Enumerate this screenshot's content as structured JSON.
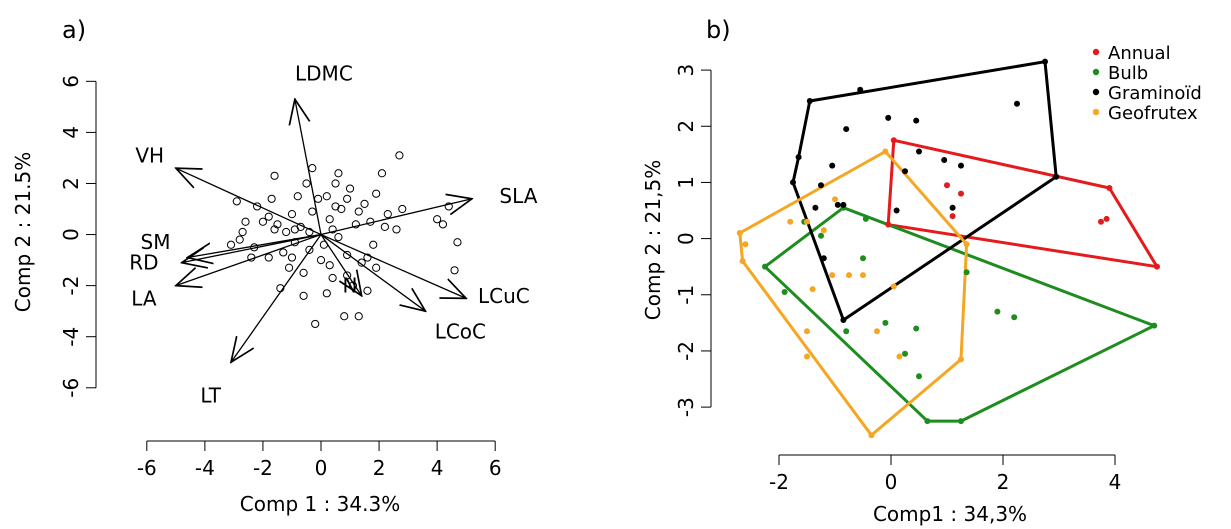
{
  "chart_data": [
    {
      "type": "scatter",
      "panel_label": "a)",
      "xlabel": "Comp 1 : 34.3%",
      "ylabel": "Comp 2 : 21.5%",
      "xlim": [
        -6.2,
        6.2
      ],
      "ylim": [
        -6.4,
        6.6
      ],
      "xticks": [
        -6,
        -4,
        -2,
        0,
        2,
        4,
        6
      ],
      "yticks": [
        -6,
        -4,
        -2,
        0,
        2,
        4,
        6
      ],
      "grid": false,
      "points": [
        [
          -2.2,
          1.1
        ],
        [
          -1.8,
          0.7
        ],
        [
          -2.6,
          0.5
        ],
        [
          -1.5,
          0.4
        ],
        [
          -1.0,
          0.8
        ],
        [
          -0.7,
          0.3
        ],
        [
          -0.3,
          0.9
        ],
        [
          0.2,
          1.5
        ],
        [
          0.5,
          1.1
        ],
        [
          0.9,
          1.4
        ],
        [
          1.3,
          0.9
        ],
        [
          1.7,
          0.5
        ],
        [
          2.2,
          0.3
        ],
        [
          2.6,
          0.2
        ],
        [
          0.4,
          0.2
        ],
        [
          0.1,
          -0.4
        ],
        [
          -0.4,
          -0.6
        ],
        [
          -0.9,
          -0.3
        ],
        [
          -1.3,
          -0.7
        ],
        [
          -1.8,
          -0.9
        ],
        [
          -2.3,
          -0.5
        ],
        [
          -2.8,
          -0.2
        ],
        [
          -1.1,
          -1.3
        ],
        [
          -0.6,
          -1.5
        ],
        [
          0.3,
          -1.2
        ],
        [
          0.9,
          -1.6
        ],
        [
          1.4,
          -1.1
        ],
        [
          1.9,
          -1.3
        ],
        [
          1.1,
          -2.0
        ],
        [
          0.2,
          -2.3
        ],
        [
          -0.2,
          -3.5
        ],
        [
          0.8,
          -3.2
        ],
        [
          1.3,
          -3.2
        ],
        [
          1.6,
          -2.2
        ],
        [
          2.8,
          1.0
        ],
        [
          2.1,
          2.4
        ],
        [
          2.7,
          3.1
        ],
        [
          -1.6,
          2.3
        ],
        [
          -0.5,
          2.0
        ],
        [
          0.5,
          2.0
        ],
        [
          1.0,
          1.8
        ],
        [
          -2.7,
          0.1
        ],
        [
          -0.8,
          1.5
        ],
        [
          1.8,
          -0.4
        ],
        [
          -3.1,
          -0.4
        ],
        [
          -1.2,
          0.1
        ],
        [
          0.9,
          -0.8
        ],
        [
          -0.1,
          1.4
        ],
        [
          -1.6,
          0.2
        ],
        [
          0.6,
          -0.1
        ],
        [
          4.4,
          1.1
        ],
        [
          4.2,
          0.4
        ],
        [
          4.7,
          -0.3
        ],
        [
          4.6,
          -1.4
        ],
        [
          4.0,
          0.6
        ],
        [
          -0.3,
          2.6
        ],
        [
          0.7,
          1.0
        ],
        [
          -2.0,
          0.5
        ],
        [
          -1.4,
          -2.1
        ],
        [
          1.5,
          1.2
        ],
        [
          0.3,
          0.6
        ],
        [
          -0.9,
          0.2
        ],
        [
          -2.4,
          -0.9
        ],
        [
          2.3,
          0.8
        ],
        [
          0.0,
          -1.0
        ],
        [
          -1.7,
          1.4
        ],
        [
          1.2,
          0.4
        ],
        [
          -0.6,
          -2.4
        ],
        [
          0.4,
          -1.7
        ],
        [
          -1.0,
          -0.9
        ],
        [
          1.9,
          1.6
        ],
        [
          -2.9,
          1.3
        ],
        [
          -0.4,
          0.1
        ],
        [
          0.6,
          2.4
        ],
        [
          1.6,
          -0.9
        ]
      ],
      "arrows": [
        {
          "label": "LDMC",
          "x": -0.9,
          "y": 5.3
        },
        {
          "label": "VH",
          "x": -5.0,
          "y": 2.6
        },
        {
          "label": "SLA",
          "x": 5.2,
          "y": 1.4
        },
        {
          "label": "SM",
          "x": -4.6,
          "y": -0.9
        },
        {
          "label": "RD",
          "x": -4.8,
          "y": -1.1
        },
        {
          "label": "LA",
          "x": -5.0,
          "y": -2.0
        },
        {
          "label": "N",
          "x": 1.4,
          "y": -2.4
        },
        {
          "label": "LCuC",
          "x": 5.0,
          "y": -2.5
        },
        {
          "label": "LCoC",
          "x": 3.6,
          "y": -3.0
        },
        {
          "label": "LT",
          "x": -3.1,
          "y": -5.0
        }
      ],
      "arrow_labels_pos": [
        {
          "label": "LDMC",
          "x": 0.1,
          "y": 6.3
        },
        {
          "label": "VH",
          "x": -5.9,
          "y": 3.1
        },
        {
          "label": "SLA",
          "x": 6.8,
          "y": 1.5
        },
        {
          "label": "SM",
          "x": -5.7,
          "y": -0.3
        },
        {
          "label": "RD",
          "x": -6.1,
          "y": -1.1
        },
        {
          "label": "LA",
          "x": -6.1,
          "y": -2.5
        },
        {
          "label": "N",
          "x": 1.0,
          "y": -2.0
        },
        {
          "label": "LCuC",
          "x": 6.3,
          "y": -2.4
        },
        {
          "label": "LCoC",
          "x": 4.8,
          "y": -3.8
        },
        {
          "label": "LT",
          "x": -3.8,
          "y": -6.3
        }
      ]
    },
    {
      "type": "scatter",
      "panel_label": "b)",
      "xlabel": "Comp1 : 34,3%",
      "ylabel": "Comp 2 : 21,5%",
      "xlim": [
        -2.75,
        5.0
      ],
      "ylim": [
        -3.55,
        3.5
      ],
      "xticks": [
        -2,
        0,
        2,
        4
      ],
      "yticks": [
        -3,
        -2,
        -1,
        0,
        1,
        2,
        3
      ],
      "grid": false,
      "legend_position": "top-right",
      "legend": [
        {
          "label": "Annual",
          "color": "#e41a1c"
        },
        {
          "label": "Bulb",
          "color": "#1e8c1e"
        },
        {
          "label": "Graminoïd",
          "color": "#000000"
        },
        {
          "label": "Geofrutex",
          "color": "#f5a623"
        }
      ],
      "series": [
        {
          "name": "Annual",
          "color": "#e41a1c",
          "hull": [
            [
              0.05,
              1.75
            ],
            [
              3.9,
              0.9
            ],
            [
              4.75,
              -0.5
            ],
            [
              -0.05,
              0.25
            ]
          ],
          "points": [
            [
              0.05,
              1.75
            ],
            [
              3.9,
              0.9
            ],
            [
              4.75,
              -0.5
            ],
            [
              -0.05,
              0.25
            ],
            [
              1.0,
              0.95
            ],
            [
              1.1,
              0.4
            ],
            [
              3.75,
              0.3
            ],
            [
              3.85,
              0.35
            ],
            [
              1.25,
              0.8
            ]
          ]
        },
        {
          "name": "Bulb",
          "color": "#1e8c1e",
          "hull": [
            [
              -0.85,
              0.55
            ],
            [
              4.7,
              -1.55
            ],
            [
              1.25,
              -3.25
            ],
            [
              0.65,
              -3.25
            ],
            [
              -2.25,
              -0.5
            ]
          ],
          "points": [
            [
              -0.85,
              0.55
            ],
            [
              4.7,
              -1.55
            ],
            [
              1.25,
              -3.25
            ],
            [
              0.65,
              -3.25
            ],
            [
              -2.25,
              -0.5
            ],
            [
              -1.9,
              -0.95
            ],
            [
              -1.55,
              0.3
            ],
            [
              -0.45,
              0.35
            ],
            [
              -0.8,
              -1.65
            ],
            [
              -0.1,
              -1.5
            ],
            [
              0.45,
              -1.6
            ],
            [
              0.25,
              -2.05
            ],
            [
              0.5,
              -2.45
            ],
            [
              1.35,
              -0.6
            ],
            [
              1.9,
              -1.3
            ],
            [
              2.2,
              -1.4
            ],
            [
              -1.25,
              0.05
            ],
            [
              -0.5,
              -0.35
            ]
          ]
        },
        {
          "name": "Graminoïd",
          "color": "#000000",
          "hull": [
            [
              -1.45,
              2.45
            ],
            [
              2.75,
              3.15
            ],
            [
              2.95,
              1.1
            ],
            [
              -0.85,
              -1.45
            ],
            [
              -1.75,
              1.0
            ],
            [
              -1.65,
              1.45
            ]
          ],
          "points": [
            [
              -1.45,
              2.45
            ],
            [
              2.75,
              3.15
            ],
            [
              2.95,
              1.1
            ],
            [
              -0.85,
              -1.45
            ],
            [
              -1.75,
              1.0
            ],
            [
              -1.65,
              1.45
            ],
            [
              -0.55,
              2.65
            ],
            [
              -0.05,
              2.15
            ],
            [
              0.45,
              2.1
            ],
            [
              -0.8,
              1.95
            ],
            [
              0.5,
              1.55
            ],
            [
              -1.05,
              1.3
            ],
            [
              0.95,
              1.4
            ],
            [
              1.25,
              1.3
            ],
            [
              0.25,
              1.2
            ],
            [
              2.25,
              2.4
            ],
            [
              -1.35,
              0.55
            ],
            [
              -0.95,
              0.6
            ],
            [
              -1.25,
              0.95
            ],
            [
              0.1,
              0.5
            ],
            [
              1.1,
              0.55
            ],
            [
              -1.2,
              -0.35
            ],
            [
              -0.85,
              0.6
            ]
          ]
        },
        {
          "name": "Geofrutex",
          "color": "#f5a623",
          "hull": [
            [
              -0.1,
              1.55
            ],
            [
              1.35,
              -0.1
            ],
            [
              1.25,
              -2.15
            ],
            [
              -0.35,
              -3.5
            ],
            [
              -2.65,
              -0.4
            ],
            [
              -2.7,
              0.1
            ]
          ],
          "points": [
            [
              -0.1,
              1.55
            ],
            [
              1.35,
              -0.1
            ],
            [
              1.25,
              -2.15
            ],
            [
              -0.35,
              -3.5
            ],
            [
              -2.65,
              -0.4
            ],
            [
              -2.7,
              0.1
            ],
            [
              -2.6,
              -0.1
            ],
            [
              -1.5,
              0.3
            ],
            [
              -1.2,
              0.15
            ],
            [
              -1.0,
              0.7
            ],
            [
              -1.05,
              -0.65
            ],
            [
              -0.75,
              -0.65
            ],
            [
              -0.5,
              -0.65
            ],
            [
              -1.4,
              -0.9
            ],
            [
              -1.5,
              -1.65
            ],
            [
              -0.25,
              -1.65
            ],
            [
              -1.5,
              -2.1
            ],
            [
              0.15,
              -2.1
            ],
            [
              0.05,
              -0.85
            ],
            [
              -1.8,
              0.3
            ]
          ]
        }
      ]
    }
  ]
}
